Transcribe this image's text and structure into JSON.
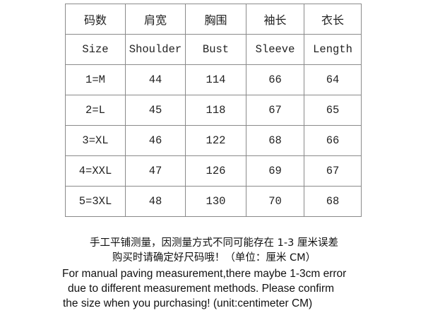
{
  "table": {
    "header_zh": [
      "码数",
      "肩宽",
      "胸围",
      "袖长",
      "衣长"
    ],
    "header_en": [
      "Size",
      "Shoulder",
      "Bust",
      "Sleeve",
      "Length"
    ],
    "rows": [
      [
        "1=M",
        "44",
        "114",
        "66",
        "64"
      ],
      [
        "2=L",
        "45",
        "118",
        "67",
        "65"
      ],
      [
        "3=XL",
        "46",
        "122",
        "68",
        "66"
      ],
      [
        "4=XXL",
        "47",
        "126",
        "69",
        "67"
      ],
      [
        "5=3XL",
        "48",
        "130",
        "70",
        "68"
      ]
    ]
  },
  "note": {
    "zh_line1": "手工平铺测量，因测量方式不同可能存在 1-3 厘米误差",
    "zh_line2": "购买时请确定好尺码哦！（单位：厘米 CM）",
    "en_line1": "For manual paving measurement,there maybe 1-3cm error",
    "en_line2": "due to different measurement methods. Please confirm",
    "en_line3": "the size when you purchasing! (unit:centimeter CM)"
  }
}
